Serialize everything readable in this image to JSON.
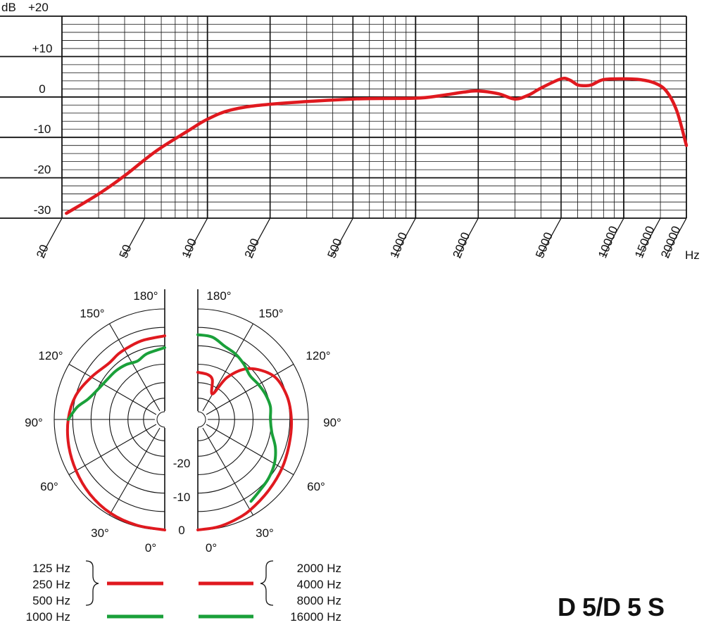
{
  "model_label": "D 5/D 5 S",
  "colors": {
    "red": "#e0191f",
    "green": "#1aa03a",
    "grid": "#111111"
  },
  "chart_data": [
    {
      "type": "line",
      "x_scale": "log",
      "y_unit": "dB",
      "x_unit": "Hz",
      "xlim": [
        20,
        20000
      ],
      "ylim": [
        -30,
        20
      ],
      "y_ticks": [
        {
          "value": 20,
          "label": "+20"
        },
        {
          "value": 10,
          "label": "+10"
        },
        {
          "value": 0,
          "label": "0"
        },
        {
          "value": -10,
          "label": "-10"
        },
        {
          "value": -20,
          "label": "-20"
        },
        {
          "value": -30,
          "label": "-30"
        }
      ],
      "x_tick_labels": [
        {
          "value": 20,
          "label": "20"
        },
        {
          "value": 50,
          "label": "50"
        },
        {
          "value": 100,
          "label": "100"
        },
        {
          "value": 200,
          "label": "200"
        },
        {
          "value": 500,
          "label": "500"
        },
        {
          "value": 1000,
          "label": "1000"
        },
        {
          "value": 2000,
          "label": "2000"
        },
        {
          "value": 5000,
          "label": "5000"
        },
        {
          "value": 10000,
          "label": "10000"
        },
        {
          "value": 15000,
          "label": "15000"
        },
        {
          "value": 20000,
          "label": "20000"
        }
      ],
      "grid": true,
      "series": [
        {
          "color": "#e0191f",
          "points": [
            [
              21,
              -28.8
            ],
            [
              30,
              -24
            ],
            [
              40,
              -19.5
            ],
            [
              50,
              -15.5
            ],
            [
              60,
              -12.5
            ],
            [
              80,
              -8.5
            ],
            [
              100,
              -5.5
            ],
            [
              130,
              -3.2
            ],
            [
              200,
              -1.8
            ],
            [
              500,
              -0.5
            ],
            [
              1000,
              -0.3
            ],
            [
              1300,
              0.3
            ],
            [
              1700,
              1.2
            ],
            [
              2000,
              1.5
            ],
            [
              2500,
              0.8
            ],
            [
              3000,
              -0.5
            ],
            [
              3500,
              0.5
            ],
            [
              4000,
              2.2
            ],
            [
              5000,
              4.5
            ],
            [
              5500,
              4.2
            ],
            [
              6000,
              3.0
            ],
            [
              6500,
              2.8
            ],
            [
              7000,
              3.0
            ],
            [
              8000,
              4.3
            ],
            [
              10000,
              4.5
            ],
            [
              12000,
              4.3
            ],
            [
              14000,
              3.5
            ],
            [
              16000,
              1.5
            ],
            [
              18000,
              -3.5
            ],
            [
              20000,
              -12
            ]
          ]
        }
      ]
    },
    {
      "type": "polar",
      "angle_labels_left": [
        "180°",
        "150°",
        "120°",
        "90°",
        "60°",
        "30°",
        "0°"
      ],
      "angle_labels_right": [
        "180°",
        "150°",
        "120°",
        "90°",
        "60°",
        "30°",
        "0°"
      ],
      "level_labels": [
        "-20",
        "-10",
        "0"
      ],
      "rlim_db": [
        -30,
        0
      ],
      "left_series": [
        {
          "color": "#e0191f",
          "points": [
            [
              0,
              0
            ],
            [
              15,
              -0.3
            ],
            [
              30,
              -0.6
            ],
            [
              45,
              -1.3
            ],
            [
              60,
              -2.2
            ],
            [
              75,
              -3.0
            ],
            [
              90,
              -3.8
            ],
            [
              105,
              -5.0
            ],
            [
              120,
              -7.0
            ],
            [
              135,
              -8.5
            ],
            [
              145,
              -8.2
            ],
            [
              155,
              -8.0
            ],
            [
              165,
              -7.7
            ],
            [
              180,
              -7.3
            ]
          ]
        },
        {
          "color": "#1aa03a",
          "points": [
            [
              90,
              -3.8
            ],
            [
              98,
              -6.0
            ],
            [
              105,
              -8.5
            ],
            [
              115,
              -10.2
            ],
            [
              125,
              -11.0
            ],
            [
              135,
              -11.3
            ],
            [
              145,
              -11.8
            ],
            [
              155,
              -12.5
            ],
            [
              165,
              -11.5
            ],
            [
              180,
              -10.5
            ]
          ]
        }
      ],
      "right_series": [
        {
          "color": "#e0191f",
          "points": [
            [
              0,
              0
            ],
            [
              10,
              -0.3
            ],
            [
              20,
              -0.9
            ],
            [
              30,
              -1.6
            ],
            [
              45,
              -2.8
            ],
            [
              60,
              -3.6
            ],
            [
              75,
              -4.3
            ],
            [
              90,
              -4.6
            ],
            [
              105,
              -5.0
            ],
            [
              120,
              -6.3
            ],
            [
              135,
              -10.5
            ],
            [
              145,
              -16
            ],
            [
              150,
              -22
            ],
            [
              160,
              -18.5
            ],
            [
              168,
              -17.5
            ],
            [
              180,
              -17.2
            ]
          ]
        },
        {
          "color": "#1aa03a",
          "points": [
            [
              33,
              -3.5
            ],
            [
              40,
              -4.3
            ],
            [
              50,
              -5.0
            ],
            [
              60,
              -6.0
            ],
            [
              70,
              -7.6
            ],
            [
              80,
              -9.6
            ],
            [
              90,
              -10.3
            ],
            [
              100,
              -10.0
            ],
            [
              110,
              -10.4
            ],
            [
              120,
              -11.0
            ],
            [
              130,
              -11.5
            ],
            [
              140,
              -10.5
            ],
            [
              150,
              -9.5
            ],
            [
              160,
              -8.8
            ],
            [
              170,
              -7.3
            ],
            [
              180,
              -7.0
            ]
          ]
        }
      ]
    }
  ],
  "legend": {
    "left_freqs": [
      "125 Hz",
      "250 Hz",
      "500 Hz",
      "1000 Hz"
    ],
    "right_freqs": [
      "2000 Hz",
      "4000 Hz",
      "8000 Hz",
      "16000 Hz"
    ]
  }
}
